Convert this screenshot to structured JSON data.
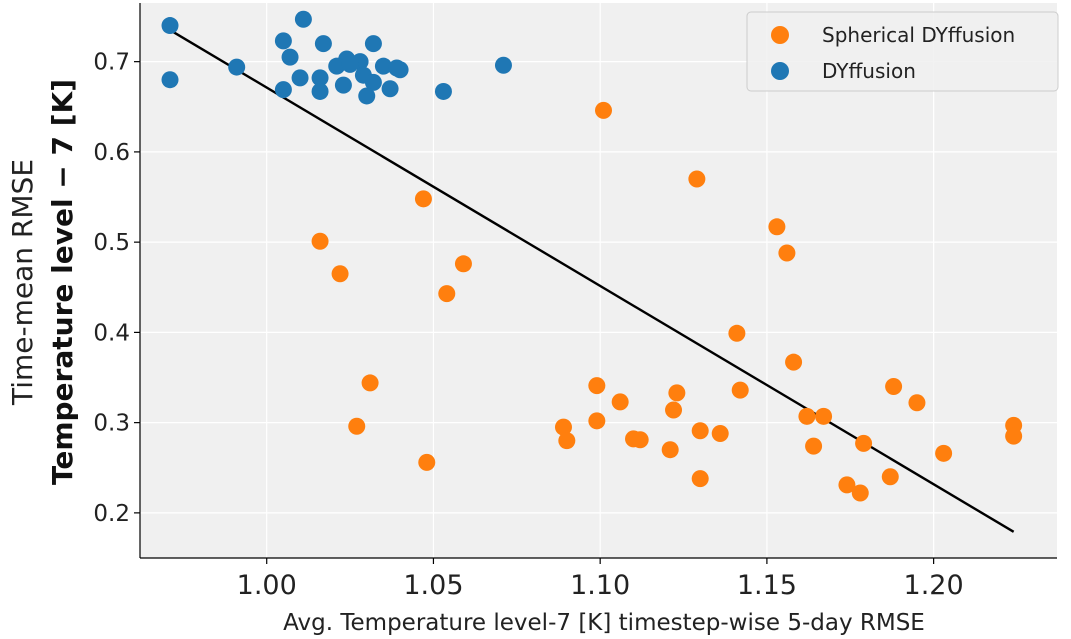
{
  "chart_data": {
    "type": "scatter",
    "xlabel": "Avg. Temperature level-7 [K] timestep-wise 5-day RMSE",
    "ylabel_line1": "Time-mean RMSE",
    "ylabel_line2": "Temperature level − 7 [K]",
    "xlim": [
      0.962,
      1.237
    ],
    "ylim": [
      0.15,
      0.765
    ],
    "x_ticks": [
      1.0,
      1.05,
      1.1,
      1.15,
      1.2
    ],
    "x_tick_labels": [
      "1.00",
      "1.05",
      "1.10",
      "1.15",
      "1.20"
    ],
    "y_ticks": [
      0.2,
      0.3,
      0.4,
      0.5,
      0.6,
      0.7
    ],
    "y_tick_labels": [
      "0.2",
      "0.3",
      "0.4",
      "0.5",
      "0.6",
      "0.7"
    ],
    "grid": true,
    "legend_position": "top-right",
    "series": [
      {
        "name": "Spherical DYffusion",
        "color": "#ff7f0e",
        "points": [
          [
            1.101,
            0.646
          ],
          [
            1.129,
            0.57
          ],
          [
            1.047,
            0.548
          ],
          [
            1.153,
            0.517
          ],
          [
            1.016,
            0.501
          ],
          [
            1.156,
            0.488
          ],
          [
            1.059,
            0.476
          ],
          [
            1.022,
            0.465
          ],
          [
            1.054,
            0.443
          ],
          [
            1.141,
            0.399
          ],
          [
            1.158,
            0.367
          ],
          [
            1.031,
            0.344
          ],
          [
            1.099,
            0.341
          ],
          [
            1.188,
            0.34
          ],
          [
            1.142,
            0.336
          ],
          [
            1.123,
            0.333
          ],
          [
            1.106,
            0.323
          ],
          [
            1.195,
            0.322
          ],
          [
            1.122,
            0.314
          ],
          [
            1.162,
            0.307
          ],
          [
            1.167,
            0.307
          ],
          [
            1.099,
            0.302
          ],
          [
            1.089,
            0.295
          ],
          [
            1.224,
            0.297
          ],
          [
            1.027,
            0.296
          ],
          [
            1.13,
            0.291
          ],
          [
            1.136,
            0.288
          ],
          [
            1.224,
            0.285
          ],
          [
            1.11,
            0.282
          ],
          [
            1.112,
            0.281
          ],
          [
            1.09,
            0.28
          ],
          [
            1.179,
            0.277
          ],
          [
            1.164,
            0.274
          ],
          [
            1.121,
            0.27
          ],
          [
            1.203,
            0.266
          ],
          [
            1.048,
            0.256
          ],
          [
            1.187,
            0.24
          ],
          [
            1.13,
            0.238
          ],
          [
            1.174,
            0.231
          ],
          [
            1.178,
            0.222
          ]
        ]
      },
      {
        "name": "DYffusion",
        "color": "#1f77b4",
        "points": [
          [
            0.971,
            0.74
          ],
          [
            1.011,
            0.747
          ],
          [
            1.005,
            0.723
          ],
          [
            1.017,
            0.72
          ],
          [
            1.032,
            0.72
          ],
          [
            0.991,
            0.694
          ],
          [
            1.007,
            0.705
          ],
          [
            1.024,
            0.703
          ],
          [
            1.028,
            0.7
          ],
          [
            1.021,
            0.695
          ],
          [
            1.025,
            0.697
          ],
          [
            1.035,
            0.695
          ],
          [
            1.04,
            0.691
          ],
          [
            1.071,
            0.696
          ],
          [
            0.971,
            0.68
          ],
          [
            1.01,
            0.682
          ],
          [
            1.016,
            0.682
          ],
          [
            1.029,
            0.685
          ],
          [
            1.032,
            0.677
          ],
          [
            1.023,
            0.674
          ],
          [
            1.037,
            0.67
          ],
          [
            1.005,
            0.669
          ],
          [
            1.016,
            0.667
          ],
          [
            1.03,
            0.662
          ],
          [
            1.053,
            0.667
          ],
          [
            1.039,
            0.693
          ]
        ]
      }
    ],
    "fit_line": {
      "color": "#000000",
      "x": [
        0.971,
        1.224
      ],
      "y": [
        0.735,
        0.179
      ]
    }
  }
}
